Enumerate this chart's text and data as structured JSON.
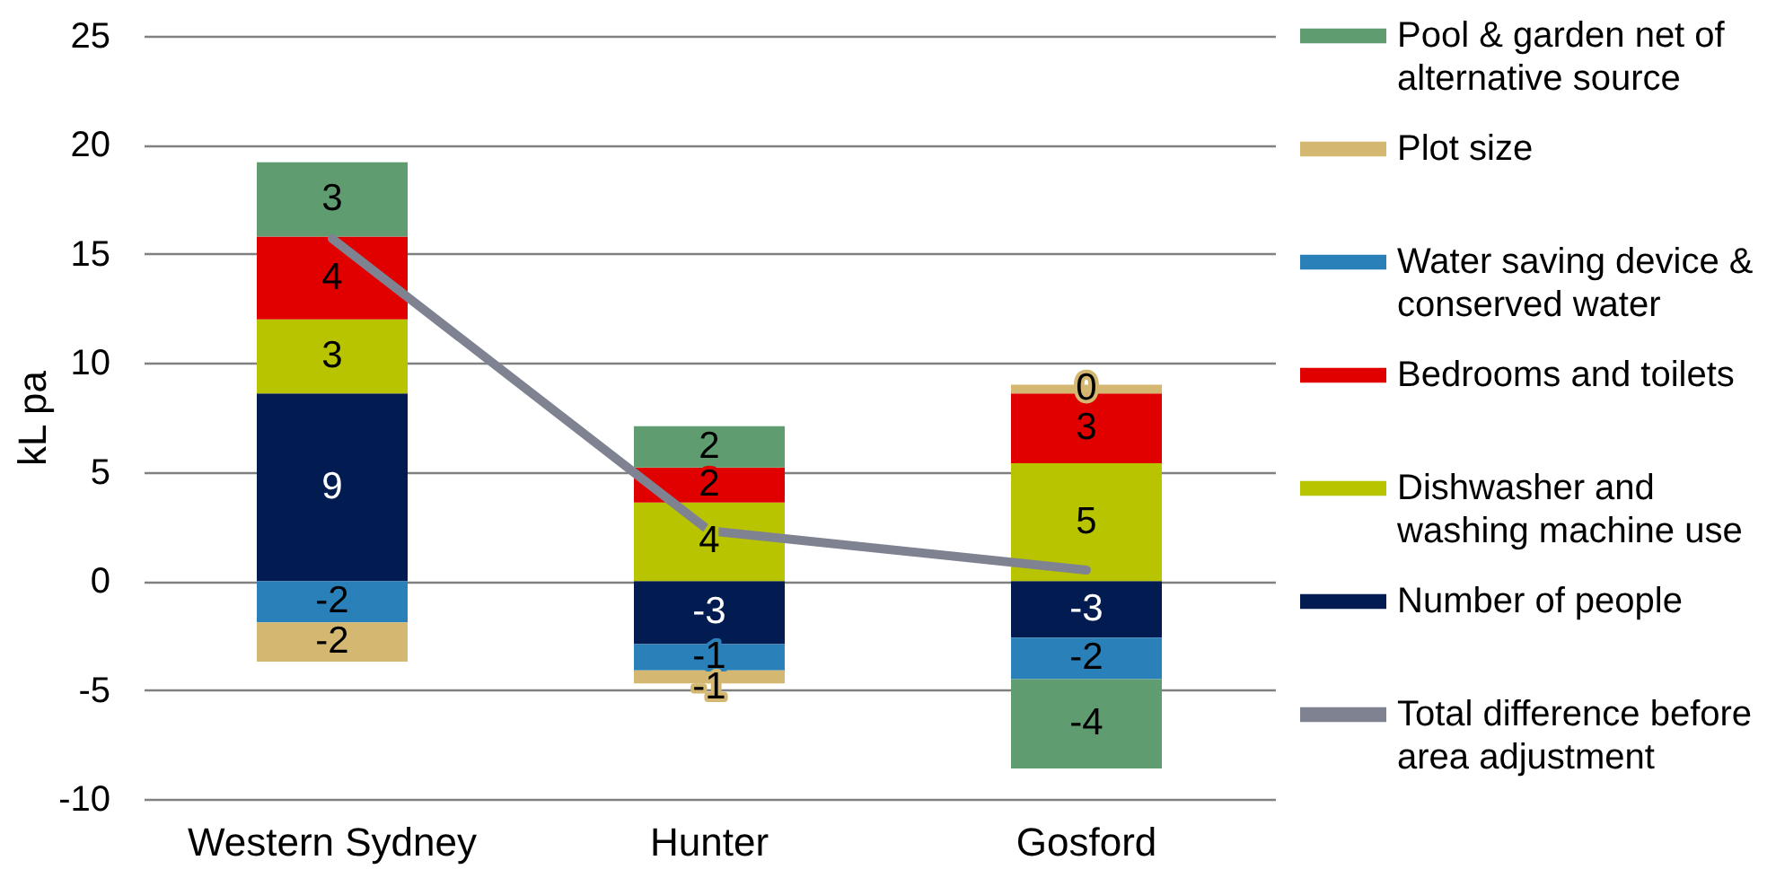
{
  "chart_data": {
    "type": "bar",
    "categories": [
      "Western Sydney",
      "Hunter",
      "Gosford"
    ],
    "ylabel": "kL pa",
    "ylim": [
      -10,
      25
    ],
    "yticks": [
      -10,
      -5,
      0,
      5,
      10,
      15,
      20,
      25
    ],
    "stacked": true,
    "grid": "y",
    "legend": "right",
    "series": [
      {
        "name": "Number of people",
        "color": "#021c52",
        "values": [
          8.6,
          -2.9,
          -2.6
        ],
        "value_labels": [
          "9",
          "-3",
          "-3"
        ]
      },
      {
        "name": "Dishwasher and washing machine use",
        "color": "#b9c400",
        "values": [
          3.4,
          3.6,
          5.4
        ],
        "value_labels": [
          "3",
          "4",
          "5"
        ]
      },
      {
        "name": "Bedrooms and toilets",
        "color": "#e00000",
        "values": [
          3.8,
          1.6,
          3.2
        ],
        "value_labels": [
          "4",
          "2",
          "3"
        ]
      },
      {
        "name": "Water saving device & conserved water",
        "color": "#2a80b9",
        "values": [
          -1.9,
          -1.2,
          -1.9
        ],
        "value_labels": [
          "-2",
          "-1",
          "-2"
        ]
      },
      {
        "name": "Plot size",
        "color": "#d4b872",
        "values": [
          -1.8,
          -0.6,
          0.4
        ],
        "value_labels": [
          "-2",
          "-1",
          "0"
        ]
      },
      {
        "name": "Pool & garden net of alternative source",
        "color": "#5f9c70",
        "values": [
          3.4,
          1.9,
          -4.1
        ],
        "value_labels": [
          "3",
          "2",
          "-4"
        ]
      },
      {
        "type": "line",
        "name": "Total difference before area adjustment",
        "color": "#7f8391",
        "values": [
          15.7,
          2.3,
          0.5
        ]
      }
    ]
  }
}
